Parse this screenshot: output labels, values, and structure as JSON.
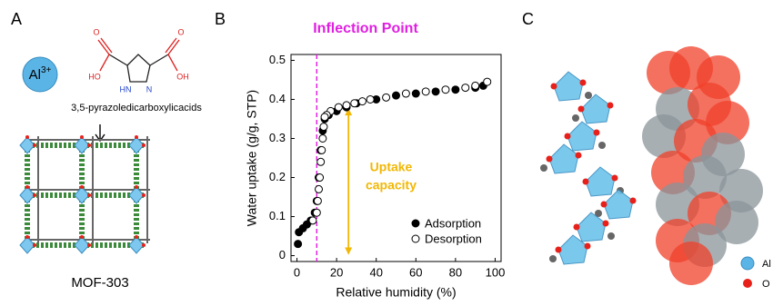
{
  "panels": {
    "a": {
      "label": "A",
      "ion": {
        "symbol": "Al",
        "charge": "3+"
      },
      "atoms": {
        "left_o": "O",
        "left_oh": "HO",
        "nh": "HN",
        "n": "N",
        "right_o": "O",
        "right_oh": "OH"
      },
      "linker": "3,5-pyrazoledicarboxylicacids",
      "product": "MOF-303"
    },
    "b": {
      "label": "B"
    },
    "c": {
      "label": "C",
      "legend": [
        "Al",
        "O"
      ]
    }
  },
  "chart_data": {
    "type": "scatter",
    "xlabel": "Relative humidity (%)",
    "ylabel": "Water uptake (g/g, STP)",
    "xlim": [
      -3,
      103
    ],
    "ylim": [
      -0.015,
      0.515
    ],
    "xticks": [
      0,
      20,
      40,
      60,
      80,
      100
    ],
    "yticks": [
      0,
      0.1,
      0.2,
      0.3,
      0.4,
      0.5
    ],
    "legend": "lower right",
    "series": [
      {
        "name": "Adsorption",
        "color": "#000000",
        "marker": "filled",
        "x": [
          0.5,
          1,
          3,
          5,
          7,
          9,
          10,
          11,
          12,
          13,
          14,
          16,
          20,
          25,
          30,
          40,
          50,
          60,
          70,
          80,
          90,
          94
        ],
        "values": [
          0.03,
          0.06,
          0.07,
          0.08,
          0.09,
          0.11,
          0.14,
          0.2,
          0.27,
          0.32,
          0.35,
          0.36,
          0.37,
          0.38,
          0.39,
          0.4,
          0.41,
          0.415,
          0.42,
          0.425,
          0.43,
          0.435
        ]
      },
      {
        "name": "Desorption",
        "color": "#000000",
        "marker": "open",
        "x": [
          96,
          90,
          85,
          75,
          65,
          55,
          45,
          37,
          33,
          29,
          25,
          21,
          17,
          15,
          14,
          13.5,
          13,
          12.5,
          12,
          11.5,
          11,
          10.5,
          10,
          8
        ],
        "values": [
          0.445,
          0.435,
          0.43,
          0.425,
          0.42,
          0.415,
          0.405,
          0.4,
          0.395,
          0.39,
          0.385,
          0.38,
          0.37,
          0.36,
          0.355,
          0.33,
          0.3,
          0.27,
          0.24,
          0.2,
          0.17,
          0.14,
          0.11,
          0.09
        ]
      }
    ],
    "annotations": [
      {
        "text": "Inflection Point",
        "x": 10,
        "color": "#e020e0"
      },
      {
        "text_lines": [
          "Uptake",
          "capacity"
        ],
        "x": 26,
        "y": [
          0,
          0.38
        ],
        "color": "#f2b705"
      }
    ]
  }
}
